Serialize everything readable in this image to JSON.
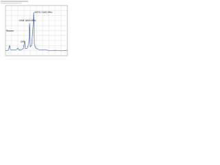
{
  "annotations": {
    "umts": "UMTS 2100 MHz",
    "gsm": "GSM 1800 MHz",
    "radars": "Radars",
    "gps": "GPS"
  }
}
